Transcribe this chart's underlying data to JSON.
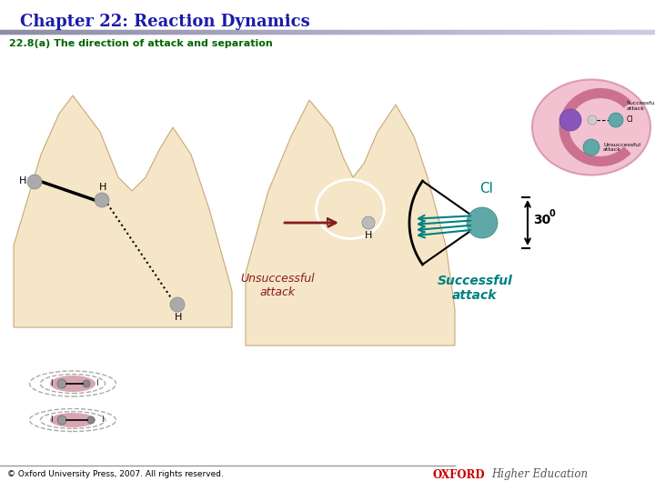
{
  "title": "Chapter 22: Reaction Dynamics",
  "subtitle": "22.8(a) The direction of attack and separation",
  "title_color": "#1a1aaa",
  "subtitle_color": "#006600",
  "bg_color": "#ffffff",
  "footer_left": "© Oxford University Press, 2007. All rights reserved.",
  "footer_oxford": "OXFORD",
  "footer_right": "Higher Education",
  "angle_label": "30",
  "unsuccessful_label": "Unsuccessful\nattack",
  "successful_label": "Successful\nattack",
  "unsuccessful_color": "#8b1a1a",
  "successful_color": "#008080",
  "cl_label": "Cl",
  "cl_color": "#008080",
  "mountain_color": "#f5e6c8",
  "mountain_edge": "#c8a878",
  "atom_gray": "#aaaaaa",
  "atom_teal": "#5fa8a8",
  "atom_purple": "#8855bb",
  "atom_light_gray": "#bbbbbb"
}
